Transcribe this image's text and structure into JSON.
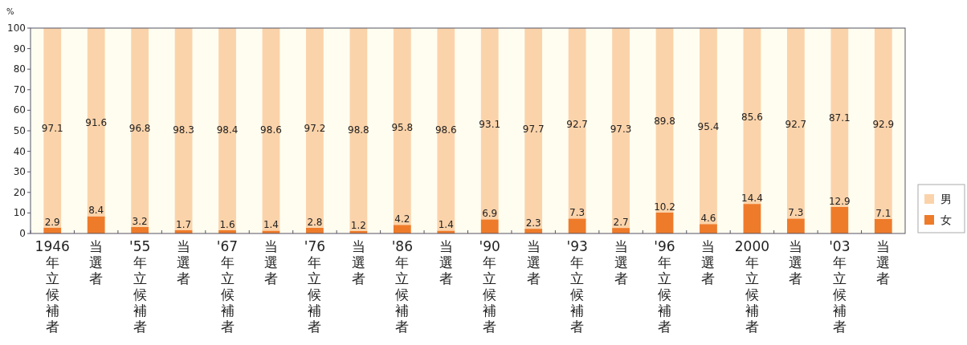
{
  "chart_data": {
    "type": "bar",
    "stacked": true,
    "ylabel": "%",
    "categories": [
      "1946年立候補者",
      "当選者",
      "'55年立候補者",
      "当選者",
      "'67年立候補者",
      "当選者",
      "'76年立候補者",
      "当選者",
      "'86年立候補者",
      "当選者",
      "'90年立候補者",
      "当選者",
      "'93年立候補者",
      "当選者",
      "'96年立候補者",
      "当選者",
      "2000年立候補者",
      "当選者",
      "'03年立候補者",
      "当選者"
    ],
    "series": [
      {
        "name": "女",
        "color": "#ee7b2a",
        "values": [
          2.9,
          8.4,
          3.2,
          1.7,
          1.6,
          1.4,
          2.8,
          1.2,
          4.2,
          1.4,
          6.9,
          2.3,
          7.3,
          2.7,
          10.2,
          4.6,
          14.4,
          7.3,
          12.9,
          7.1
        ]
      },
      {
        "name": "男",
        "color": "#fbd3aa",
        "values": [
          97.1,
          91.6,
          96.8,
          98.3,
          98.4,
          98.6,
          97.2,
          98.8,
          95.8,
          98.6,
          93.1,
          97.7,
          92.7,
          97.3,
          89.8,
          95.4,
          85.6,
          92.7,
          87.1,
          92.9
        ]
      }
    ],
    "data_labels": true,
    "ylim": [
      0,
      100
    ],
    "yticks": [
      0,
      10,
      20,
      30,
      40,
      50,
      60,
      70,
      80,
      90,
      100
    ],
    "legend": "right",
    "grid": false
  }
}
